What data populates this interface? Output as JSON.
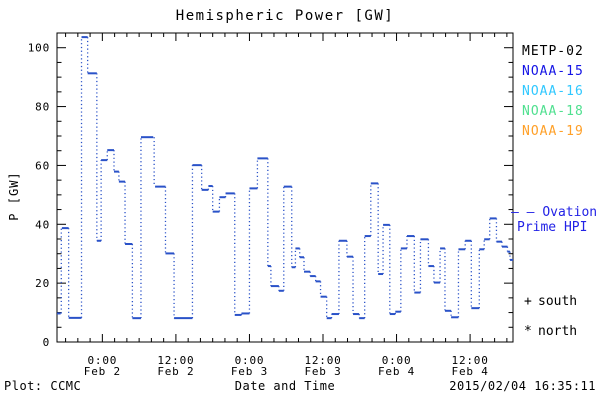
{
  "header": {
    "title": "Hemispheric Power [GW]"
  },
  "footer": {
    "left": "Plot: CCMC",
    "axis_label": "Date and Time",
    "timestamp": "2015/02/04 16:35:11"
  },
  "legend": {
    "satellites": [
      {
        "label": "METP-02",
        "color": "#000000"
      },
      {
        "label": "NOAA-15",
        "color": "#1414e6"
      },
      {
        "label": "NOAA-16",
        "color": "#30c8ff"
      },
      {
        "label": "NOAA-18",
        "color": "#50e090"
      },
      {
        "label": "NOAA-19",
        "color": "#ffa028"
      }
    ],
    "model": {
      "marker": "— —",
      "line1": "Ovation",
      "line2": "Prime HPI",
      "color": "#2222e6"
    },
    "markers": [
      {
        "symbol": "+",
        "label": "south"
      },
      {
        "symbol": "*",
        "label": "north"
      }
    ]
  },
  "chart_data": {
    "type": "line",
    "title": "Hemispheric Power [GW]",
    "xlabel": "Date and Time",
    "ylabel": "P [GW]",
    "x_unit": "hours since 2015-02-02 00:00 UT",
    "xlim": [
      -7.4,
      67.0
    ],
    "ylim": [
      0,
      105
    ],
    "y_major_ticks": [
      0,
      20,
      40,
      60,
      80,
      100
    ],
    "y_minor_step": 5,
    "x_minor_step_h": 2,
    "x_major_ticks": [
      {
        "t": 0,
        "time": "0:00",
        "date": "Feb 2"
      },
      {
        "t": 12,
        "time": "12:00",
        "date": "Feb 2"
      },
      {
        "t": 24,
        "time": "0:00",
        "date": "Feb 3"
      },
      {
        "t": 36,
        "time": "12:00",
        "date": "Feb 3"
      },
      {
        "t": 48,
        "time": "0:00",
        "date": "Feb 4"
      },
      {
        "t": 60,
        "time": "12:00",
        "date": "Feb 4"
      }
    ],
    "grid": false,
    "line_color": "#2a52c8",
    "style": "solid horizontal steps joined by dotted vertical connectors",
    "series_name": "NOAA-15 Hemispheric Power",
    "segments": [
      [
        -7.4,
        -6.8,
        9.7
      ],
      [
        -6.6,
        -5.5,
        38.7
      ],
      [
        -5.5,
        -3.4,
        8.2
      ],
      [
        -3.4,
        -2.4,
        103.6
      ],
      [
        -2.4,
        -0.9,
        91.3
      ],
      [
        -0.9,
        -0.2,
        34.4
      ],
      [
        -0.2,
        0.8,
        61.8
      ],
      [
        0.8,
        1.9,
        65.2
      ],
      [
        1.9,
        2.7,
        57.9
      ],
      [
        2.7,
        3.7,
        54.5
      ],
      [
        3.7,
        4.9,
        33.3
      ],
      [
        4.9,
        6.3,
        8.1
      ],
      [
        6.3,
        8.3,
        69.6
      ],
      [
        8.6,
        10.3,
        52.8
      ],
      [
        10.3,
        11.7,
        30.1
      ],
      [
        11.7,
        14.7,
        8.1
      ],
      [
        14.7,
        16.2,
        60.1
      ],
      [
        16.2,
        17.3,
        51.7
      ],
      [
        17.3,
        18.0,
        53.0
      ],
      [
        18.0,
        19.1,
        44.3
      ],
      [
        19.1,
        20.1,
        49.2
      ],
      [
        20.1,
        21.6,
        50.5
      ],
      [
        21.6,
        22.7,
        9.2
      ],
      [
        22.7,
        24.0,
        9.7
      ],
      [
        24.0,
        25.3,
        52.2
      ],
      [
        25.3,
        27.0,
        62.4
      ],
      [
        27.0,
        27.5,
        25.8
      ],
      [
        27.5,
        28.8,
        19.0
      ],
      [
        28.8,
        29.6,
        17.4
      ],
      [
        29.6,
        30.9,
        52.8
      ],
      [
        30.9,
        31.5,
        25.4
      ],
      [
        31.5,
        32.2,
        31.8
      ],
      [
        32.2,
        32.9,
        28.8
      ],
      [
        32.9,
        33.9,
        23.9
      ],
      [
        33.9,
        34.8,
        22.4
      ],
      [
        34.8,
        35.6,
        20.6
      ],
      [
        35.6,
        36.6,
        15.4
      ],
      [
        36.6,
        37.4,
        8.1
      ],
      [
        37.4,
        38.6,
        9.5
      ],
      [
        38.6,
        39.9,
        34.4
      ],
      [
        39.9,
        40.9,
        29.0
      ],
      [
        40.9,
        41.9,
        9.5
      ],
      [
        41.9,
        42.8,
        8.1
      ],
      [
        42.8,
        43.8,
        36.0
      ],
      [
        43.8,
        45.0,
        53.9
      ],
      [
        45.0,
        45.8,
        23.1
      ],
      [
        45.8,
        46.9,
        39.8
      ],
      [
        46.9,
        47.8,
        9.5
      ],
      [
        47.8,
        48.7,
        10.3
      ],
      [
        48.7,
        49.7,
        31.8
      ],
      [
        49.7,
        50.9,
        36.0
      ],
      [
        50.9,
        51.9,
        16.8
      ],
      [
        51.9,
        53.2,
        34.9
      ],
      [
        53.2,
        54.1,
        25.8
      ],
      [
        54.1,
        55.1,
        20.2
      ],
      [
        55.1,
        55.9,
        31.8
      ],
      [
        55.9,
        56.9,
        10.6
      ],
      [
        56.9,
        58.1,
        8.4
      ],
      [
        58.1,
        59.2,
        31.5
      ],
      [
        59.2,
        60.2,
        34.4
      ],
      [
        60.2,
        61.5,
        11.5
      ],
      [
        61.5,
        62.3,
        31.5
      ],
      [
        62.3,
        63.2,
        34.9
      ],
      [
        63.2,
        64.3,
        42.0
      ],
      [
        64.3,
        65.2,
        34.1
      ],
      [
        65.2,
        66.1,
        32.4
      ],
      [
        66.1,
        66.5,
        30.7
      ],
      [
        66.5,
        67.0,
        27.9
      ]
    ]
  }
}
